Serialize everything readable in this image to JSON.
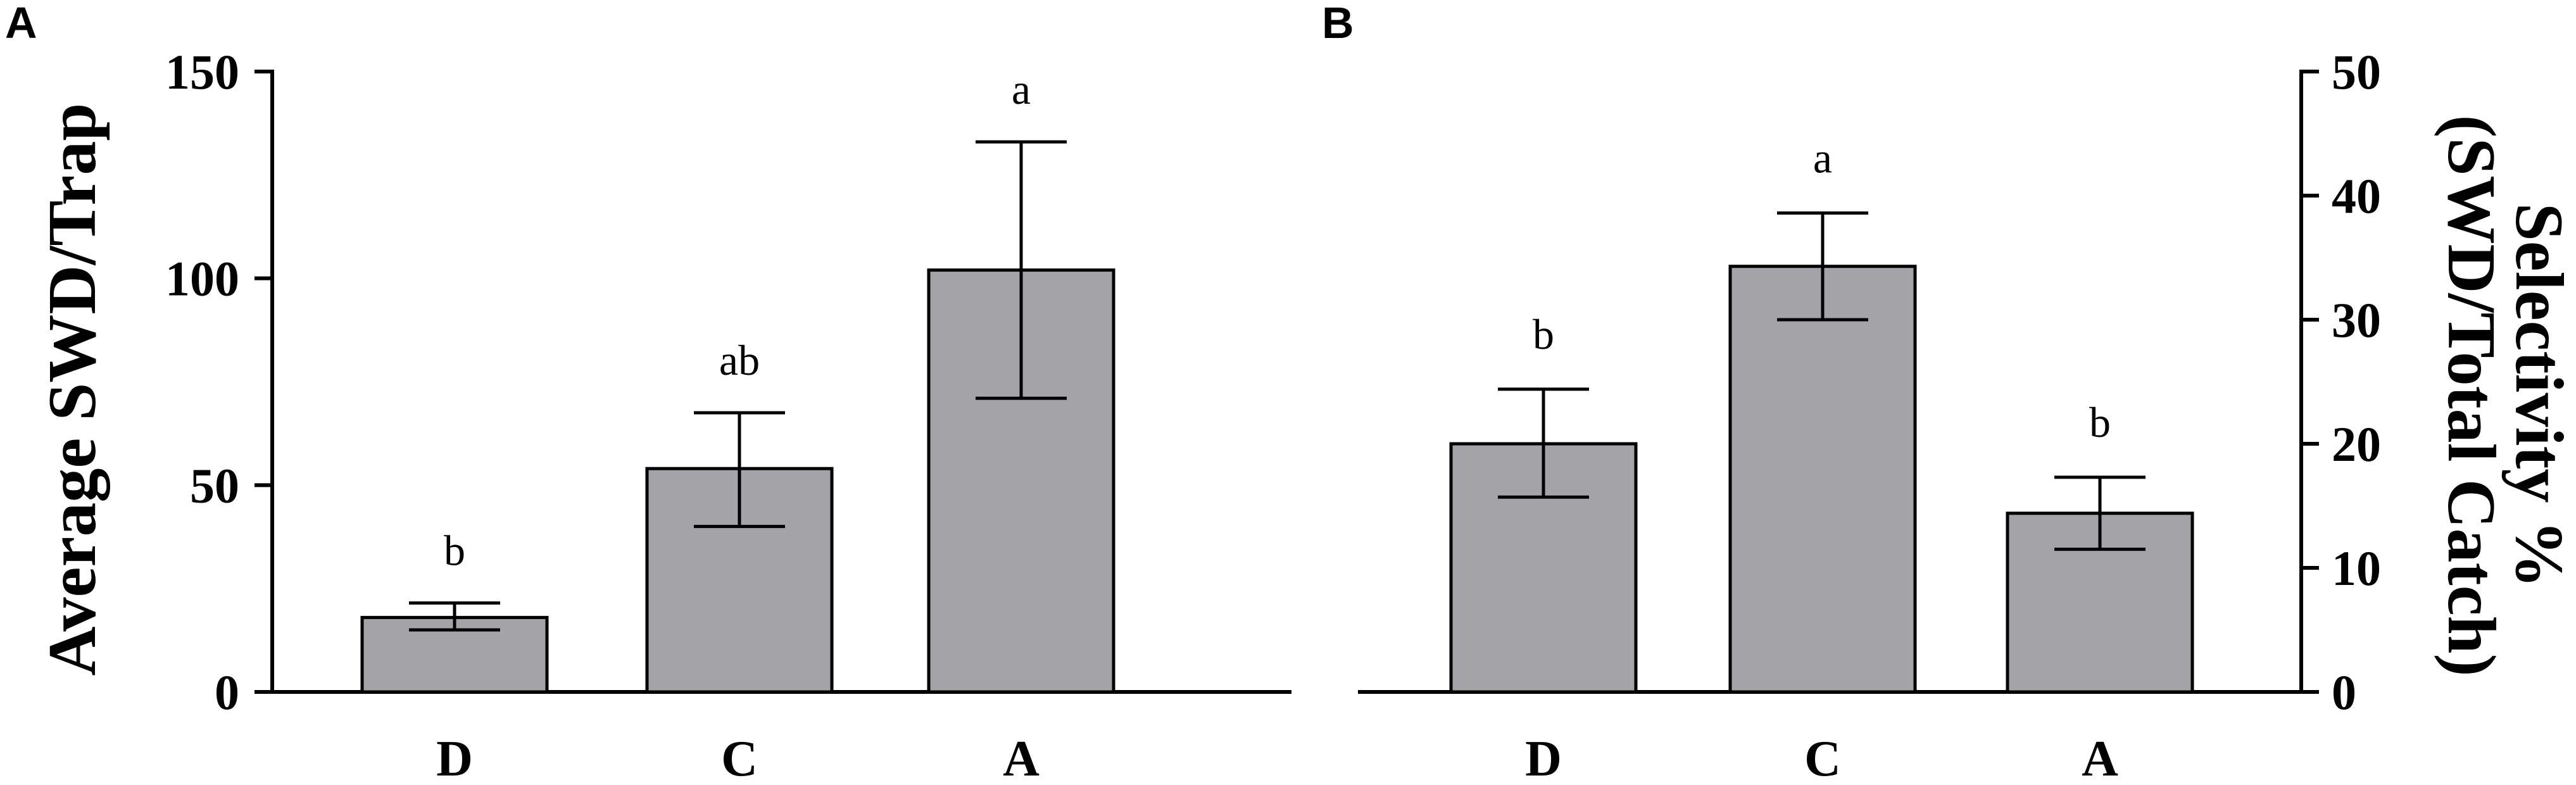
{
  "chart_data": [
    {
      "panel": "A",
      "type": "bar",
      "ylabel": "Average SWD/Trap",
      "xlabel": "",
      "y_axis_side": "left",
      "ylim": [
        0,
        150
      ],
      "yticks": [
        0,
        50,
        100,
        150
      ],
      "categories": [
        "D",
        "C",
        "A"
      ],
      "values": [
        18,
        54,
        102
      ],
      "error_low": [
        15,
        40,
        71
      ],
      "error_high": [
        21.5,
        67.5,
        133
      ],
      "significance": [
        "b",
        "ab",
        "a"
      ],
      "bar_colors": [
        "#a3a3a8",
        "#a3a3a8",
        "#a3a3a8"
      ],
      "bar_outline": [
        "#000000",
        "#000000",
        "#7a7a7a"
      ]
    },
    {
      "panel": "B",
      "type": "bar",
      "ylabel_lines": [
        "Selectivity %",
        "(SWD/Total Catch)"
      ],
      "xlabel": "",
      "y_axis_side": "right",
      "ylim": [
        0,
        50
      ],
      "yticks": [
        0,
        10,
        20,
        30,
        40,
        50
      ],
      "categories": [
        "D",
        "C",
        "A"
      ],
      "values": [
        20,
        34.3,
        14.4
      ],
      "error_low": [
        15.7,
        30,
        11.5
      ],
      "error_high": [
        24.4,
        38.6,
        17.3
      ],
      "significance": [
        "b",
        "a",
        "b"
      ],
      "bar_colors": [
        "#a3a3a8",
        "#a3a3a8",
        "#a3a3a8"
      ],
      "bar_outline": [
        "#000000",
        "#000000",
        "#000000"
      ]
    }
  ]
}
